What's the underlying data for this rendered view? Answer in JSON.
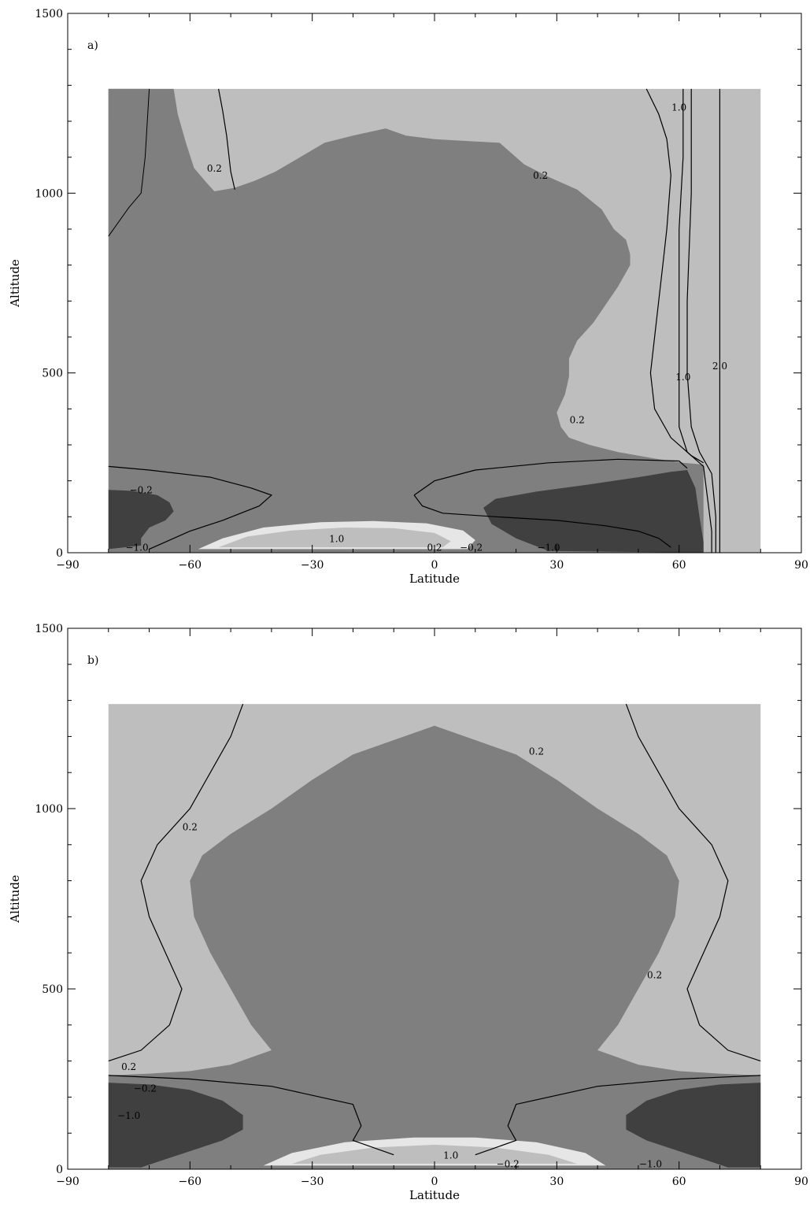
{
  "chart_data": [
    {
      "type": "contour",
      "panel_label": "a)",
      "xlabel": "Latitude",
      "ylabel": "Altitude",
      "xlim": [
        -90,
        90
      ],
      "ylim": [
        0,
        1500
      ],
      "xticks": [
        -90,
        -60,
        -30,
        0,
        30,
        60,
        90
      ],
      "yticks": [
        0,
        500,
        1000,
        1500
      ],
      "x_tick_labels": [
        "−90",
        "−60",
        "−30",
        "0",
        "30",
        "60",
        "90"
      ],
      "y_tick_labels": [
        "0",
        "500",
        "1000",
        "1500"
      ],
      "domain": {
        "x": [
          -80,
          80
        ],
        "y": [
          0,
          1290
        ]
      },
      "fill_colors": {
        "above_0.2": "#bebebe",
        "between": "#7f7f7f",
        "below_-0.2": "#404040",
        "above_0.6": "#e6e6e6"
      },
      "contour_labels": [
        {
          "text": "0.2",
          "x": -54,
          "y": 1060
        },
        {
          "text": "0.2",
          "x": 26,
          "y": 1040
        },
        {
          "text": "0.2",
          "x": 35,
          "y": 360
        },
        {
          "text": "1.0",
          "x": 60,
          "y": 1230
        },
        {
          "text": "1.0",
          "x": 61,
          "y": 480
        },
        {
          "text": "2.0",
          "x": 70,
          "y": 510
        },
        {
          "text": "−0.2",
          "x": -72,
          "y": 165
        },
        {
          "text": "−1.0",
          "x": -73,
          "y": 5
        },
        {
          "text": "1.0",
          "x": -24,
          "y": 30
        },
        {
          "text": "0.2",
          "x": 0,
          "y": 5
        },
        {
          "text": "−0.2",
          "x": 9,
          "y": 5
        },
        {
          "text": "−1.0",
          "x": 28,
          "y": 5
        }
      ]
    },
    {
      "type": "contour",
      "panel_label": "b)",
      "xlabel": "Latitude",
      "ylabel": "Altitude",
      "xlim": [
        -90,
        90
      ],
      "ylim": [
        0,
        1500
      ],
      "xticks": [
        -90,
        -60,
        -30,
        0,
        30,
        60,
        90
      ],
      "yticks": [
        0,
        500,
        1000,
        1500
      ],
      "x_tick_labels": [
        "−90",
        "−60",
        "−30",
        "0",
        "30",
        "60",
        "90"
      ],
      "y_tick_labels": [
        "0",
        "500",
        "1000",
        "1500"
      ],
      "domain": {
        "x": [
          -80,
          80
        ],
        "y": [
          0,
          1290
        ]
      },
      "fill_colors": {
        "above_0.2": "#bebebe",
        "between": "#7f7f7f",
        "below_-0.2": "#404040",
        "above_0.6": "#e6e6e6"
      },
      "contour_labels": [
        {
          "text": "0.2",
          "x": -60,
          "y": 940
        },
        {
          "text": "0.2",
          "x": 25,
          "y": 1150
        },
        {
          "text": "0.2",
          "x": 54,
          "y": 530
        },
        {
          "text": "0.2",
          "x": -75,
          "y": 275
        },
        {
          "text": "−0.2",
          "x": -71,
          "y": 215
        },
        {
          "text": "−1.0",
          "x": -75,
          "y": 140
        },
        {
          "text": "1.0",
          "x": 4,
          "y": 30
        },
        {
          "text": "−0.2",
          "x": 18,
          "y": 5
        },
        {
          "text": "−1.0",
          "x": 53,
          "y": 5
        }
      ]
    }
  ]
}
